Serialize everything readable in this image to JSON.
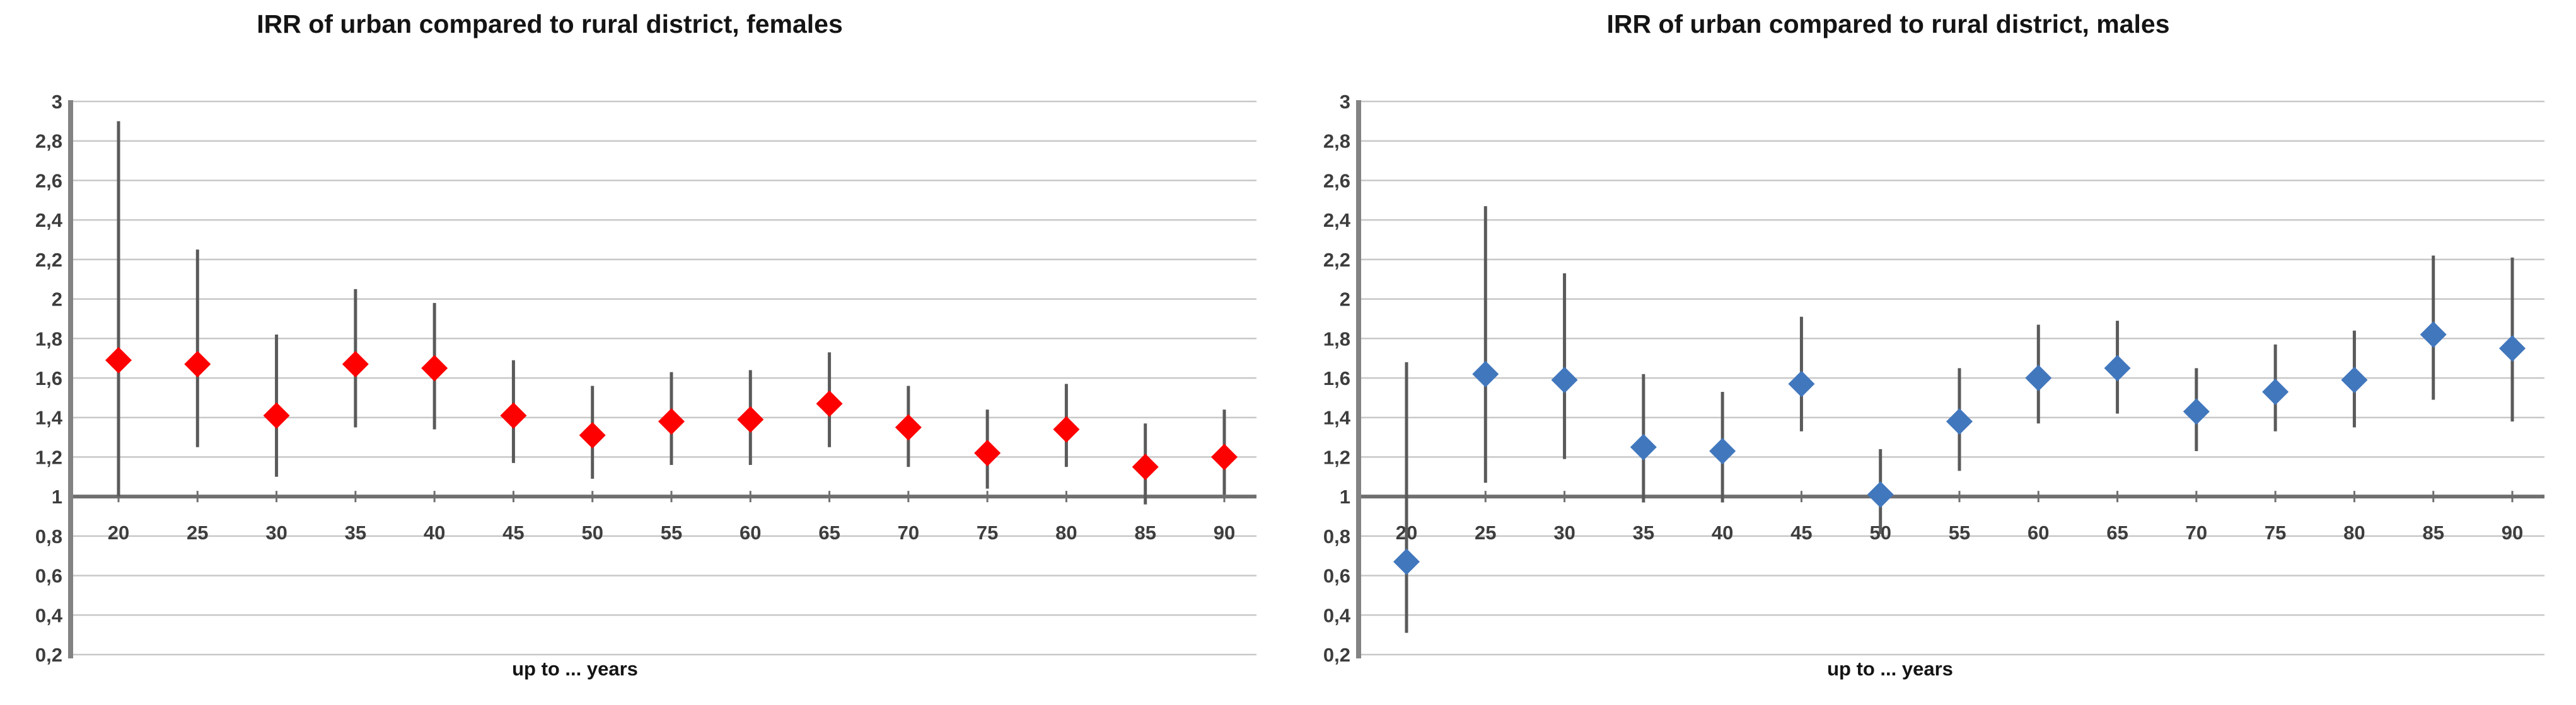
{
  "page": {
    "background": "#ffffff",
    "description": "Two Excel-style scatter charts with error bars comparing incidence rate ratios (IRR) of urban vs rural district by age, one panel for females (red) and one for males (blue)."
  },
  "styles": {
    "female_marker_color": "#fe0000",
    "male_marker_color": "#4177bd",
    "error_bar_color": "#5a5a5a",
    "gridline_color": "#c8c8c8",
    "baseline_color": "#6f6f6f",
    "axis_color": "#838383",
    "tick_label_color": "#3d3d3d",
    "title_color": "#141414"
  },
  "chart_data": [
    {
      "type": "scatter",
      "marker": "diamond",
      "title": "IRR of urban compared to rural district, females",
      "xlabel": "up to ... years",
      "ylabel": "",
      "legend": "none",
      "grid": "horizontal",
      "ylim": [
        0.2,
        3.0
      ],
      "ytick_step": 0.2,
      "ytick_labels": [
        "3",
        "2,8",
        "2,6",
        "2,4",
        "2,2",
        "2",
        "1,8",
        "1,6",
        "1,4",
        "1,2",
        "1",
        "0,8",
        "0,6",
        "0,4",
        "0,2"
      ],
      "baseline_value": 1.0,
      "marker_color": "#fe0000",
      "x": [
        20,
        25,
        30,
        35,
        40,
        45,
        50,
        55,
        60,
        65,
        70,
        75,
        80,
        85,
        90
      ],
      "series": [
        {
          "name": "IRR females",
          "values": [
            1.69,
            1.67,
            1.41,
            1.67,
            1.65,
            1.41,
            1.31,
            1.38,
            1.39,
            1.47,
            1.35,
            1.22,
            1.34,
            1.15,
            1.2
          ],
          "ci_low": [
            1.0,
            1.25,
            1.1,
            1.35,
            1.34,
            1.17,
            1.09,
            1.16,
            1.16,
            1.25,
            1.15,
            1.04,
            1.15,
            0.96,
            1.01
          ],
          "ci_high": [
            2.9,
            2.25,
            1.82,
            2.05,
            1.98,
            1.69,
            1.56,
            1.63,
            1.64,
            1.73,
            1.56,
            1.44,
            1.57,
            1.37,
            1.44
          ]
        }
      ]
    },
    {
      "type": "scatter",
      "marker": "diamond",
      "title": "IRR of urban compared to rural district, males",
      "xlabel": "up to ... years",
      "ylabel": "",
      "legend": "none",
      "grid": "horizontal",
      "ylim": [
        0.2,
        3.0
      ],
      "ytick_step": 0.2,
      "ytick_labels": [
        "3",
        "2,8",
        "2,6",
        "2,4",
        "2,2",
        "2",
        "1,8",
        "1,6",
        "1,4",
        "1,2",
        "1",
        "0,8",
        "0,6",
        "0,4",
        "0,2"
      ],
      "baseline_value": 1.0,
      "marker_color": "#4177bd",
      "x": [
        20,
        25,
        30,
        35,
        40,
        45,
        50,
        55,
        60,
        65,
        70,
        75,
        80,
        85,
        90
      ],
      "series": [
        {
          "name": "IRR males",
          "values": [
            0.67,
            1.62,
            1.59,
            1.25,
            1.23,
            1.57,
            1.01,
            1.38,
            1.6,
            1.65,
            1.43,
            1.53,
            1.59,
            1.82,
            1.75
          ],
          "ci_low": [
            0.31,
            1.07,
            1.19,
            0.97,
            0.97,
            1.33,
            0.81,
            1.13,
            1.37,
            1.42,
            1.23,
            1.33,
            1.35,
            1.49,
            1.38
          ],
          "ci_high": [
            1.68,
            2.47,
            2.13,
            1.62,
            1.53,
            1.91,
            1.24,
            1.65,
            1.87,
            1.89,
            1.65,
            1.77,
            1.84,
            2.22,
            2.21
          ]
        }
      ]
    }
  ]
}
